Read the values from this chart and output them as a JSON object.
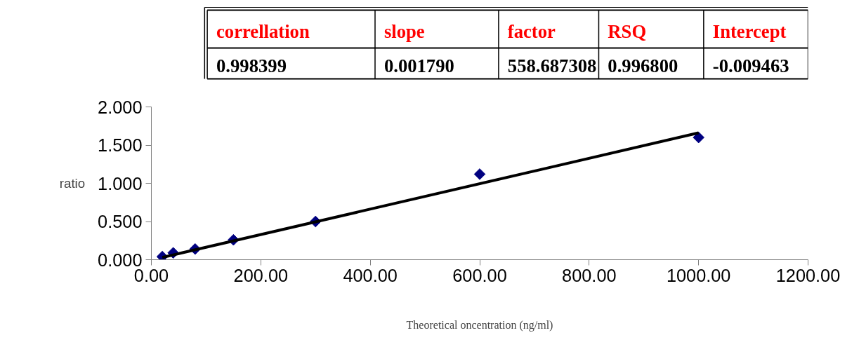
{
  "chart_data": {
    "type": "scatter",
    "xlabel": "Theoretical oncentration (ng/ml)",
    "ylabel": "ratio",
    "xlim": [
      0,
      1200
    ],
    "xticks": [
      {
        "value": 0,
        "label": "0.00"
      },
      {
        "value": 200,
        "label": "200.00"
      },
      {
        "value": 400,
        "label": "400.00"
      },
      {
        "value": 600,
        "label": "600.00"
      },
      {
        "value": 800,
        "label": "800.00"
      },
      {
        "value": 1000,
        "label": "1000.00"
      },
      {
        "value": 1200,
        "label": "1200.00"
      }
    ],
    "ylim": [
      0,
      2
    ],
    "yticks": [
      {
        "value": 0,
        "label": "0.000"
      },
      {
        "value": 0.5,
        "label": "0.500"
      },
      {
        "value": 1,
        "label": "1.000"
      },
      {
        "value": 1.5,
        "label": "1.500"
      },
      {
        "value": 2,
        "label": "2.000"
      }
    ],
    "grid": false,
    "series": [
      {
        "marker": "diamond",
        "color": "#000080",
        "x": [
          20,
          40,
          80,
          150,
          300,
          600,
          1000
        ],
        "values": [
          0.04,
          0.09,
          0.14,
          0.26,
          0.5,
          1.12,
          1.6
        ]
      },
      {
        "type": "line",
        "marker": "none",
        "color": "#000000",
        "x": [
          20,
          1000
        ],
        "values": [
          0.03,
          1.66
        ]
      }
    ],
    "annotations": [
      "correllation",
      "slope",
      "factor",
      "RSQ",
      "Intercept",
      "0.998399",
      "0.001790",
      "558.687308",
      "0.996800",
      "-0.009463"
    ]
  }
}
